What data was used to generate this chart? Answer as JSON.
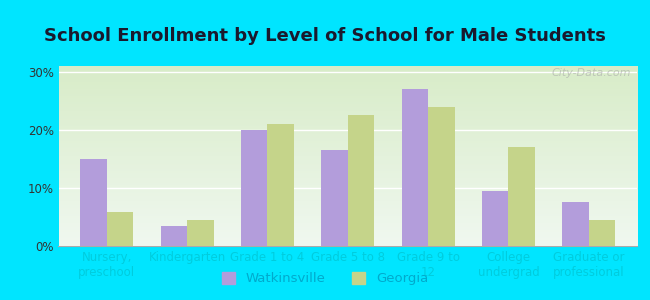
{
  "title": "School Enrollment by Level of School for Male Students",
  "categories": [
    "Nursery,\npreschool",
    "Kindergarten",
    "Grade 1 to 4",
    "Grade 5 to 8",
    "Grade 9 to\n12",
    "College\nundergrad",
    "Graduate or\nprofessional"
  ],
  "watkinsville": [
    15,
    3.5,
    20,
    16.5,
    27,
    9.5,
    7.5
  ],
  "georgia": [
    5.8,
    4.5,
    21,
    22.5,
    24,
    17,
    4.5
  ],
  "bar_color_watkinsville": "#b39ddb",
  "bar_color_georgia": "#c5d48a",
  "background_outer": "#00e5ff",
  "background_inner_bottom": "#d8ecc8",
  "background_inner_top": "#f0f8f0",
  "yticks": [
    0,
    10,
    20,
    30
  ],
  "ylim": [
    0,
    31
  ],
  "legend_labels": [
    "Watkinsville",
    "Georgia"
  ],
  "title_fontsize": 13,
  "tick_fontsize": 8.5,
  "xtick_color": "#00ccdd",
  "legend_fontsize": 9.5,
  "watermark": "City-Data.com"
}
